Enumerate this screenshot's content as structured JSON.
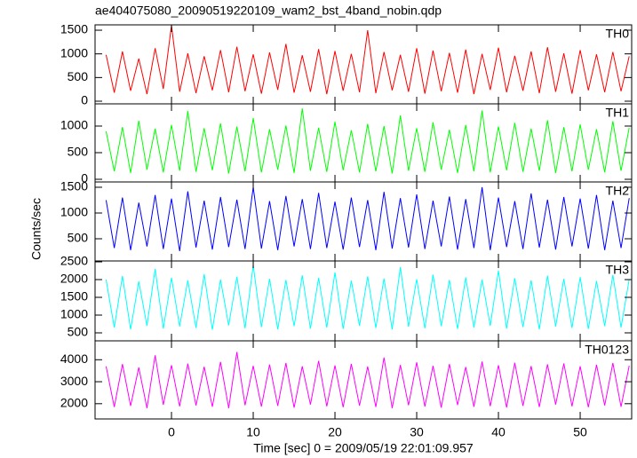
{
  "title": "ae404075080_20090519220109_wam2_bst_4band_nobin.qdp",
  "ylabel": "Counts/sec",
  "xlabel": "Time [sec] 0 = 2009/05/19 22:01:09.957",
  "chart_data": [
    {
      "type": "line",
      "xlim": [
        -9.35,
        56.3
      ],
      "xticks": [
        0,
        10,
        20,
        30,
        40,
        50
      ],
      "ylim": [
        -56,
        1613
      ],
      "yticks": [
        0,
        500,
        1000,
        1500
      ],
      "x": [
        -8,
        -7,
        -6,
        -5,
        -4,
        -3,
        -2,
        -1,
        0,
        1,
        2,
        3,
        4,
        5,
        6,
        7,
        8,
        9,
        10,
        11,
        12,
        13,
        14,
        15,
        16,
        17,
        18,
        19,
        20,
        21,
        22,
        23,
        24,
        25,
        26,
        27,
        28,
        29,
        30,
        31,
        32,
        33,
        34,
        35,
        36,
        37,
        38,
        39,
        40,
        41,
        42,
        43,
        44,
        45,
        46,
        47,
        48,
        49,
        50,
        51,
        52,
        53,
        54,
        55,
        56
      ],
      "series": [
        {
          "name": "TH0",
          "color": "#ff0000",
          "values": [
            980,
            180,
            1050,
            220,
            900,
            150,
            1120,
            260,
            1600,
            200,
            1010,
            170,
            950,
            230,
            1080,
            190,
            1150,
            210,
            990,
            160,
            1030,
            240,
            1210,
            180,
            970,
            200,
            1100,
            150,
            1060,
            220,
            1000,
            190,
            1500,
            170,
            1040,
            230,
            980,
            200,
            1120,
            160,
            1070,
            210,
            1020,
            180,
            1090,
            150,
            1000,
            240,
            1130,
            190,
            960,
            220,
            1050,
            170,
            1140,
            200,
            1010,
            160,
            1080,
            230,
            990,
            190,
            1040,
            210,
            950
          ]
        }
      ]
    },
    {
      "type": "line",
      "xlim": [
        -9.35,
        56.3
      ],
      "xticks": [
        0,
        10,
        20,
        30,
        40,
        50
      ],
      "ylim": [
        -50,
        1417
      ],
      "yticks": [
        0,
        500,
        1000
      ],
      "x": [
        -8,
        -7,
        -6,
        -5,
        -4,
        -3,
        -2,
        -1,
        0,
        1,
        2,
        3,
        4,
        5,
        6,
        7,
        8,
        9,
        10,
        11,
        12,
        13,
        14,
        15,
        16,
        17,
        18,
        19,
        20,
        21,
        22,
        23,
        24,
        25,
        26,
        27,
        28,
        29,
        30,
        31,
        32,
        33,
        34,
        35,
        36,
        37,
        38,
        39,
        40,
        41,
        42,
        43,
        44,
        45,
        46,
        47,
        48,
        49,
        50,
        51,
        52,
        53,
        54,
        55,
        56
      ],
      "series": [
        {
          "name": "TH1",
          "color": "#00ff00",
          "values": [
            900,
            150,
            980,
            120,
            1100,
            180,
            950,
            130,
            1020,
            160,
            1280,
            140,
            960,
            170,
            1050,
            110,
            990,
            150,
            1150,
            130,
            940,
            180,
            1010,
            120,
            1330,
            160,
            970,
            140,
            1080,
            170,
            920,
            130,
            1040,
            150,
            1000,
            110,
            1200,
            160,
            960,
            140,
            1070,
            180,
            930,
            120,
            1020,
            150,
            1290,
            130,
            990,
            170,
            1060,
            140,
            950,
            160,
            1110,
            120,
            980,
            150,
            1030,
            180,
            940,
            130,
            1090,
            160,
            970
          ]
        }
      ]
    },
    {
      "type": "line",
      "xlim": [
        -9.35,
        56.3
      ],
      "xticks": [
        0,
        10,
        20,
        30,
        40,
        50
      ],
      "ylim": [
        69,
        1603
      ],
      "yticks": [
        500,
        1000,
        1500
      ],
      "x": [
        -8,
        -7,
        -6,
        -5,
        -4,
        -3,
        -2,
        -1,
        0,
        1,
        2,
        3,
        4,
        5,
        6,
        7,
        8,
        9,
        10,
        11,
        12,
        13,
        14,
        15,
        16,
        17,
        18,
        19,
        20,
        21,
        22,
        23,
        24,
        25,
        26,
        27,
        28,
        29,
        30,
        31,
        32,
        33,
        34,
        35,
        36,
        37,
        38,
        39,
        40,
        41,
        42,
        43,
        44,
        45,
        46,
        47,
        48,
        49,
        50,
        51,
        52,
        53,
        54,
        55,
        56
      ],
      "series": [
        {
          "name": "TH2",
          "color": "#0000ff",
          "values": [
            1250,
            320,
            1300,
            280,
            1200,
            350,
            1350,
            300,
            1280,
            260,
            1420,
            330,
            1240,
            290,
            1310,
            340,
            1260,
            300,
            1500,
            310,
            1230,
            280,
            1330,
            350,
            1270,
            300,
            1390,
            320,
            1220,
            290,
            1300,
            340,
            1250,
            280,
            1410,
            310,
            1290,
            330,
            1360,
            300,
            1240,
            350,
            1320,
            290,
            1270,
            320,
            1500,
            280,
            1300,
            340,
            1230,
            300,
            1380,
            330,
            1260,
            290,
            1310,
            350,
            1280,
            310,
            1350,
            280,
            1240,
            320,
            1290
          ]
        }
      ]
    },
    {
      "type": "line",
      "xlim": [
        -9.35,
        56.3
      ],
      "xticks": [
        0,
        10,
        20,
        30,
        40,
        50
      ],
      "ylim": [
        275,
        2525
      ],
      "yticks": [
        500,
        1000,
        1500,
        2000,
        2500
      ],
      "x": [
        -8,
        -7,
        -6,
        -5,
        -4,
        -3,
        -2,
        -1,
        0,
        1,
        2,
        3,
        4,
        5,
        6,
        7,
        8,
        9,
        10,
        11,
        12,
        13,
        14,
        15,
        16,
        17,
        18,
        19,
        20,
        21,
        22,
        23,
        24,
        25,
        26,
        27,
        28,
        29,
        30,
        31,
        32,
        33,
        34,
        35,
        36,
        37,
        38,
        39,
        40,
        41,
        42,
        43,
        44,
        45,
        46,
        47,
        48,
        49,
        50,
        51,
        52,
        53,
        54,
        55,
        56
      ],
      "series": [
        {
          "name": "TH3",
          "color": "#00ffff",
          "values": [
            2000,
            650,
            2100,
            600,
            1950,
            700,
            2300,
            620,
            2050,
            680,
            1980,
            640,
            2150,
            590,
            2000,
            710,
            2080,
            630,
            2400,
            660,
            2020,
            600,
            1990,
            690,
            2120,
            620,
            2050,
            650,
            2200,
            610,
            1970,
            700,
            2090,
            640,
            2030,
            600,
            2350,
            670,
            2010,
            630,
            2140,
            690,
            1990,
            610,
            2060,
            650,
            2000,
            700,
            2250,
            620,
            2040,
            660,
            1980,
            600,
            2110,
            680,
            2020,
            640,
            2070,
            610,
            1960,
            690,
            2130,
            650,
            2010
          ]
        }
      ]
    },
    {
      "type": "line",
      "xlim": [
        -9.35,
        56.3
      ],
      "xticks": [
        0,
        10,
        20,
        30,
        40,
        50
      ],
      "ylim": [
        1306,
        4860
      ],
      "yticks": [
        2000,
        3000,
        4000
      ],
      "x": [
        -8,
        -7,
        -6,
        -5,
        -4,
        -3,
        -2,
        -1,
        0,
        1,
        2,
        3,
        4,
        5,
        6,
        7,
        8,
        9,
        10,
        11,
        12,
        13,
        14,
        15,
        16,
        17,
        18,
        19,
        20,
        21,
        22,
        23,
        24,
        25,
        26,
        27,
        28,
        29,
        30,
        31,
        32,
        33,
        34,
        35,
        36,
        37,
        38,
        39,
        40,
        41,
        42,
        43,
        44,
        45,
        46,
        47,
        48,
        49,
        50,
        51,
        52,
        53,
        54,
        55,
        56
      ],
      "series": [
        {
          "name": "TH0123",
          "color": "#ff00ff",
          "values": [
            3700,
            1850,
            3800,
            1900,
            3650,
            1800,
            4200,
            1950,
            3750,
            1880,
            3820,
            1920,
            3680,
            1860,
            3900,
            1800,
            4350,
            1930,
            3720,
            1870,
            3780,
            1900,
            3850,
            1820,
            3700,
            1960,
            3950,
            1880,
            3740,
            1840,
            3810,
            1910,
            3690,
            1850,
            4100,
            1800,
            3760,
            1930,
            3880,
            1870,
            3720,
            1820,
            3800,
            1940,
            3670,
            1860,
            3920,
            1890,
            3750,
            1830,
            3860,
            1900,
            3710,
            1850,
            3790,
            1960,
            3830,
            1880,
            3700,
            1840,
            3770,
            1920,
            3850,
            1860,
            3730
          ]
        }
      ]
    }
  ]
}
